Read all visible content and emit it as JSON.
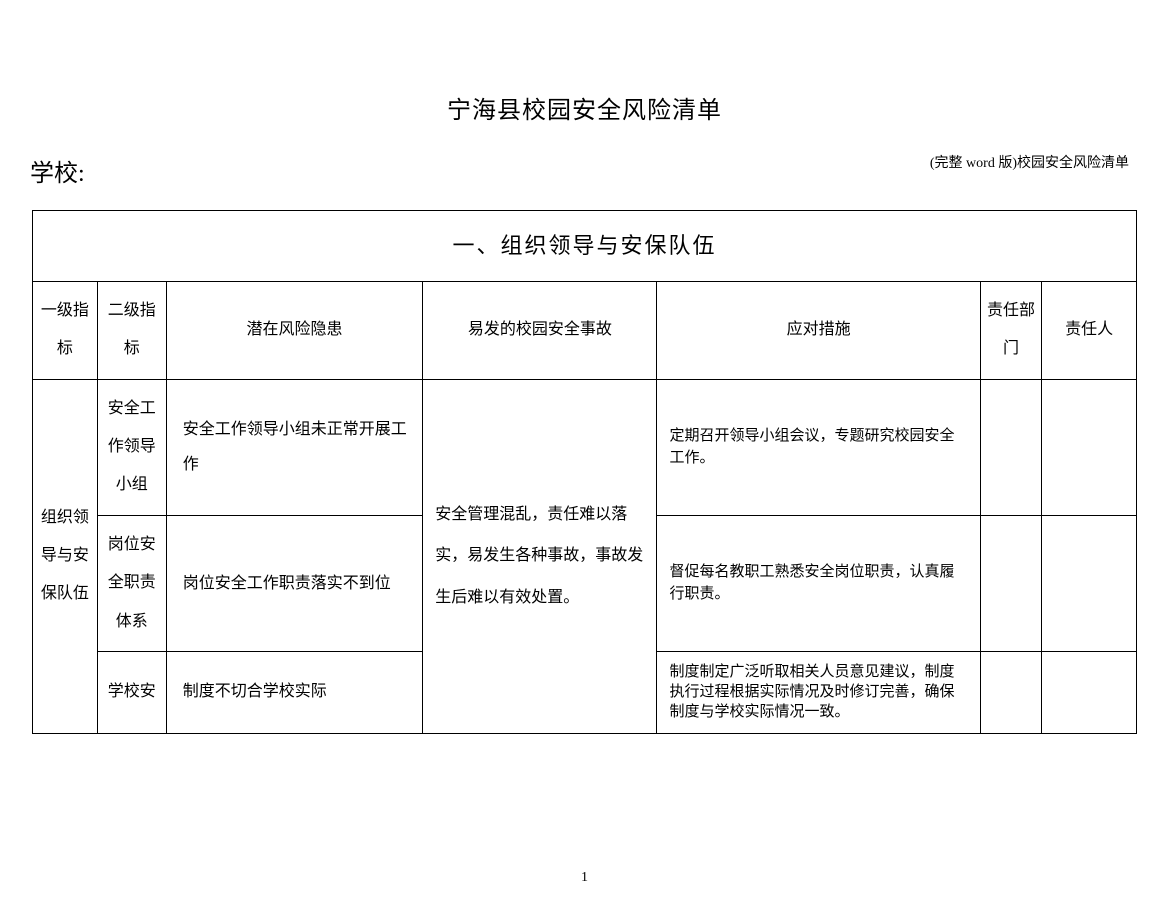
{
  "header_note": "(完整 word 版)校园安全风险清单",
  "main_title": "宁海县校园安全风险清单",
  "school_label": "学校:",
  "section_title": "一、组织领导与安保队伍",
  "columns": {
    "level1": "一级指标",
    "level2": "二级指标",
    "risk": "潜在风险隐患",
    "incident": "易发的校园安全事故",
    "measure": "应对措施",
    "dept": "责任部门",
    "person": "责任人"
  },
  "level1_value": "组织领导与安保队伍",
  "incident_text": "安全管理混乱，责任难以落实，易发生各种事故，事故发生后难以有效处置。",
  "rows": [
    {
      "level2": "安全工作领导小组",
      "risk": "安全工作领导小组未正常开展工作",
      "measure": "定期召开领导小组会议，专题研究校园安全工作。"
    },
    {
      "level2": "岗位安全职责体系",
      "risk": "岗位安全工作职责落实不到位",
      "measure": "督促每名教职工熟悉安全岗位职责，认真履行职责。"
    },
    {
      "level2": "学校安",
      "risk": "制度不切合学校实际",
      "measure": "制度制定广泛听取相关人员意见建议，制度执行过程根据实际情况及时修订完善，确保制度与学校实际情况一致。"
    }
  ],
  "page_number": "1"
}
